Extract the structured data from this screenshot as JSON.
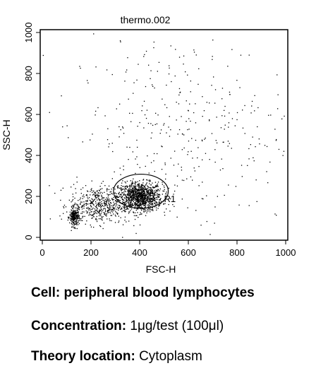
{
  "chart_data": {
    "type": "scatter",
    "title": "thermo.002",
    "xlabel": "FSC-H",
    "ylabel": "SSC-H",
    "xlim": [
      0,
      1000
    ],
    "ylim": [
      0,
      1000
    ],
    "x_ticks": [
      "0",
      "200",
      "400",
      "600",
      "800",
      "1000"
    ],
    "y_ticks": [
      "0",
      "200",
      "400",
      "600",
      "800",
      "1000"
    ],
    "grid": false,
    "point_color": "#000000",
    "clusters": [
      {
        "name": "lymphocytes",
        "center": [
          400,
          200
        ],
        "spread": [
          45,
          35
        ],
        "count": 1100
      },
      {
        "name": "debris",
        "center": [
          130,
          100
        ],
        "spread": [
          10,
          22
        ],
        "count": 220
      },
      {
        "name": "low-fsc",
        "center": [
          230,
          160
        ],
        "spread": [
          60,
          45
        ],
        "count": 500
      },
      {
        "name": "scattered",
        "center": [
          560,
          520
        ],
        "spread": [
          230,
          240
        ],
        "count": 380
      }
    ],
    "gate": {
      "label": "R1",
      "center": [
        405,
        225
      ],
      "radii": [
        155,
        115
      ]
    }
  },
  "captions": {
    "cell_label": "Cell:",
    "cell_value": "peripheral blood lymphocytes",
    "conc_label": "Concentration:",
    "conc_value": "1μg/test (100μl)",
    "loc_label": "Theory location:",
    "loc_value": "Cytoplasm"
  }
}
